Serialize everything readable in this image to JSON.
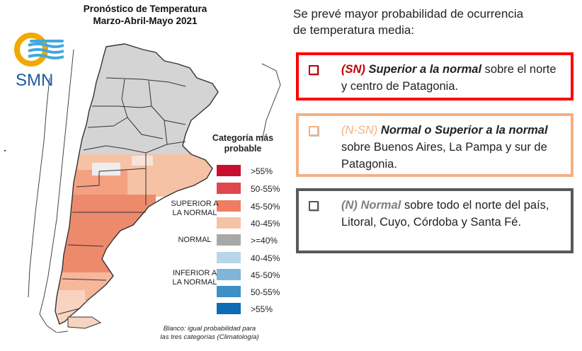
{
  "map_title": {
    "line1": "Pronóstico de Temperatura",
    "line2": "Marzo-Abril-Mayo 2021"
  },
  "logo": {
    "text": "SMN",
    "icon": "smn-logo-icon"
  },
  "legend": {
    "title_line1": "Categoría más",
    "title_line2": "probable",
    "items": [
      {
        "label": ">55%",
        "color": "#c8102e"
      },
      {
        "label": "50-55%",
        "color": "#e0474c"
      },
      {
        "label": "45-50%",
        "color": "#f07d61"
      },
      {
        "label": "40-45%",
        "color": "#f6c2a5"
      },
      {
        "label": ">=40%",
        "color": "#a8a8a8"
      },
      {
        "label": "40-45%",
        "color": "#b7d6ea"
      },
      {
        "label": "45-50%",
        "color": "#7fb5d9"
      },
      {
        "label": "50-55%",
        "color": "#3f8fc7"
      },
      {
        "label": ">55%",
        "color": "#0d6cb3"
      }
    ],
    "categories": {
      "superior_line1": "SUPERIOR A",
      "superior_line2": "LA NORMAL",
      "normal": "NORMAL",
      "inferior_line1": "INFERIOR A",
      "inferior_line2": "LA NORMAL"
    },
    "note_line1": "Blanco: igual probabilidad para",
    "note_line2": "las tres categorías (Climatología)"
  },
  "heading": {
    "line1": "Se prevé mayor probabilidad de ocurrencia",
    "line2": "de temperatura media:"
  },
  "boxes": [
    {
      "key": "(SN)",
      "title": "Superior a la normal",
      "rest": " sobre el norte y centro de Patagonia.",
      "border_color": "#ff0000",
      "check_color": "#c00000"
    },
    {
      "key": "(N-SN)",
      "title": "Normal o Superior a la normal",
      "rest": " sobre Buenos Aires, La Pampa y sur de Patagonia.",
      "border_color": "#f4b183",
      "check_color": "#f4b183"
    },
    {
      "key": "(N)",
      "title": "Normal",
      "rest": " sobre todo el norte del país, Litoral, Cuyo, Córdoba y Santa Fé.",
      "border_color": "#595959",
      "check_color": "#595959"
    }
  ]
}
